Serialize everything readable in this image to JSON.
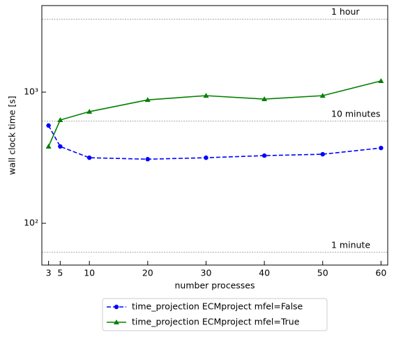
{
  "chart_data": {
    "type": "line",
    "xlabel": "number processes",
    "ylabel": "wall clock time [s]",
    "x": [
      3,
      5,
      10,
      20,
      30,
      40,
      50,
      60
    ],
    "series": [
      {
        "name": "time_projection ECMproject mfel=False",
        "color": "#0000ff",
        "linestyle": "dashed",
        "marker": "circle",
        "values": [
          556,
          385,
          316,
          308,
          316,
          328,
          336,
          375
        ]
      },
      {
        "name": "time_projection ECMproject mfel=True",
        "color": "#008000",
        "linestyle": "solid",
        "marker": "triangle",
        "values": [
          385,
          613,
          710,
          873,
          940,
          885,
          940,
          1217
        ]
      }
    ],
    "xlim": [
      1.85,
      61.15
    ],
    "xticks": [
      3,
      5,
      10,
      20,
      30,
      40,
      50,
      60
    ],
    "ylim": [
      48,
      4570
    ],
    "ylog": true,
    "yticks": [
      {
        "value": 100,
        "label": "10²"
      },
      {
        "value": 1000,
        "label": "10³"
      }
    ],
    "reference_lines": [
      {
        "value": 3600,
        "label": "1 hour"
      },
      {
        "value": 600,
        "label": "10 minutes"
      },
      {
        "value": 60,
        "label": "1 minute"
      }
    ],
    "legend": "bottom"
  }
}
